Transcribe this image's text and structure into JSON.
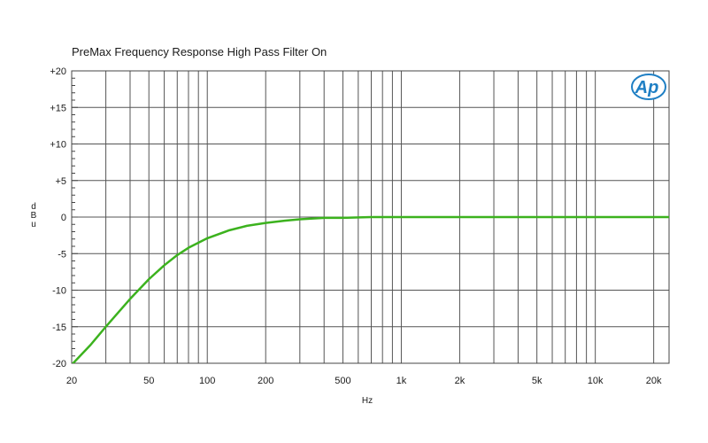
{
  "chart_data": {
    "type": "line",
    "title": "PreMax Frequency Response High Pass Filter On",
    "xlabel": "Hz",
    "ylabel": "dBu",
    "x_scale": "log",
    "xlim": [
      20,
      24000
    ],
    "ylim": [
      -20,
      20
    ],
    "grid": true,
    "x_major_ticks": [
      20,
      50,
      100,
      200,
      500,
      1000,
      2000,
      5000,
      10000,
      20000
    ],
    "x_tick_labels": [
      "20",
      "50",
      "100",
      "200",
      "500",
      "1k",
      "2k",
      "5k",
      "10k",
      "20k"
    ],
    "x_minor_gridlines": [
      30,
      40,
      60,
      70,
      80,
      90,
      300,
      400,
      600,
      700,
      800,
      900,
      3000,
      4000,
      6000,
      7000,
      8000,
      9000
    ],
    "y_major_ticks": [
      -20,
      -15,
      -10,
      -5,
      0,
      5,
      10,
      15,
      20
    ],
    "y_tick_labels": [
      "-20",
      "-15",
      "-10",
      "-5",
      "0",
      "+5",
      "+10",
      "+15",
      "+20"
    ],
    "series": [
      {
        "color": "#3cb21e",
        "points": [
          [
            20,
            -20.2
          ],
          [
            25,
            -17.5
          ],
          [
            30,
            -15.0
          ],
          [
            40,
            -11.2
          ],
          [
            50,
            -8.5
          ],
          [
            60,
            -6.6
          ],
          [
            70,
            -5.2
          ],
          [
            80,
            -4.2
          ],
          [
            100,
            -2.9
          ],
          [
            130,
            -1.8
          ],
          [
            160,
            -1.2
          ],
          [
            200,
            -0.8
          ],
          [
            250,
            -0.5
          ],
          [
            300,
            -0.3
          ],
          [
            400,
            -0.1
          ],
          [
            500,
            -0.1
          ],
          [
            700,
            0.0
          ],
          [
            800,
            0.0
          ],
          [
            1000,
            0.0
          ],
          [
            2000,
            0.0
          ],
          [
            5000,
            0.0
          ],
          [
            10000,
            0.0
          ],
          [
            20000,
            0.0
          ],
          [
            24000,
            0.0
          ]
        ]
      }
    ],
    "logo": "Ap"
  }
}
